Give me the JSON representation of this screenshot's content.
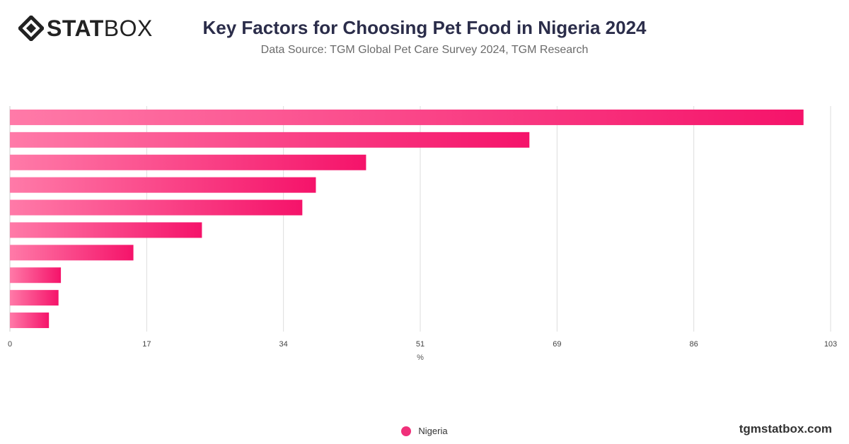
{
  "header": {
    "logo_bold": "STAT",
    "logo_light": "BOX",
    "title": "Key Factors for Choosing Pet Food in Nigeria 2024",
    "subtitle": "Data Source: TGM Global Pet Care Survey 2024, TGM Research"
  },
  "footer": {
    "site": "tgmstatbox.com"
  },
  "colors": {
    "bar_start": "#ff7aa8",
    "bar_end": "#f5136a",
    "grid": "#dddddd",
    "logo_mark": "#222222"
  },
  "icons": {
    "logo": "statbox-diamond-icon",
    "legend": "legend-dot-icon"
  },
  "chart_data": {
    "type": "bar",
    "orientation": "horizontal",
    "title": "Key Factors for Choosing Pet Food in Nigeria 2024",
    "xlabel": "%",
    "ylabel": "",
    "xlim": [
      0,
      103
    ],
    "x_ticks": [
      "0",
      "17",
      "34",
      "51",
      "69",
      "86",
      "103"
    ],
    "tick_values": [
      0,
      17.17,
      34.33,
      51.5,
      68.67,
      85.83,
      103
    ],
    "grid": true,
    "legend_position": "bottom",
    "categories": [
      "",
      "",
      "",
      "",
      "",
      "",
      "",
      "",
      "",
      ""
    ],
    "series": [
      {
        "name": "Nigeria",
        "values": [
          99.6,
          65.2,
          44.7,
          38.4,
          36.7,
          24.1,
          15.5,
          6.4,
          6.1,
          4.9
        ]
      }
    ]
  }
}
